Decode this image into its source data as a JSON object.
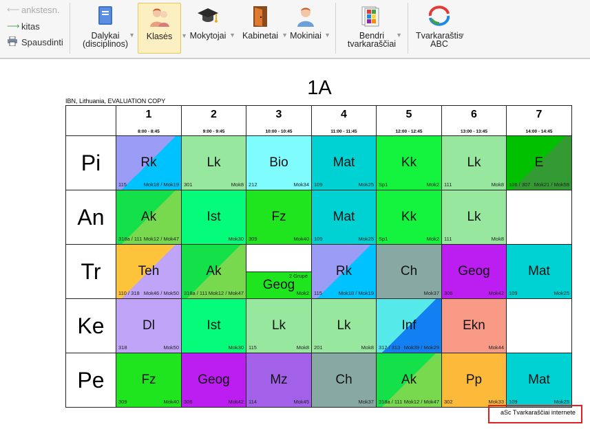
{
  "toolbar": {
    "history": [
      {
        "label": "ankstesn.",
        "icon": "arrow-left-icon",
        "enabled": false
      },
      {
        "label": "kitas",
        "icon": "arrow-right-icon",
        "enabled": true
      },
      {
        "label": "Spausdinti",
        "icon": "printer-icon",
        "enabled": true
      }
    ],
    "buttons": [
      {
        "key": "dalykai",
        "l1": "Dalykai",
        "l2": "(disciplinos)",
        "icon": "book-icon"
      },
      {
        "key": "klases",
        "l1": "Klasės",
        "l2": "",
        "icon": "class-icon"
      },
      {
        "key": "mokytojai",
        "l1": "Mokytojai",
        "l2": "",
        "icon": "graduation-cap-icon"
      },
      {
        "key": "kabinetai",
        "l1": "Kabinetai",
        "l2": "",
        "icon": "door-icon"
      },
      {
        "key": "mokiniai",
        "l1": "Mokiniai",
        "l2": "",
        "icon": "student-icon"
      },
      {
        "key": "bendri",
        "l1": "Bendri",
        "l2": "tvarkaraščiai",
        "icon": "timetables-icon"
      },
      {
        "key": "abc",
        "l1": "Tvarkaraštis",
        "l2": "ABC",
        "icon": "abc-logo-icon"
      }
    ]
  },
  "timetable": {
    "title": "1A",
    "eval_note": "IBN, Lithuania, EVALUATION COPY",
    "periods": [
      {
        "num": "1",
        "time": "8:00 - 8:45"
      },
      {
        "num": "2",
        "time": "9:00 - 9:45"
      },
      {
        "num": "3",
        "time": "10:00 - 10:45"
      },
      {
        "num": "4",
        "time": "11:00 - 11:45"
      },
      {
        "num": "5",
        "time": "12:00 - 12:45"
      },
      {
        "num": "6",
        "time": "13:00 - 13:45"
      },
      {
        "num": "7",
        "time": "14:00 - 14:45"
      }
    ],
    "days": [
      {
        "name": "Pi",
        "lessons": [
          {
            "subject": "Rk",
            "room": "115",
            "teacher": "Mok18 / Mok19",
            "colors": [
              "#9a9cf6",
              "#00c2ff"
            ]
          },
          {
            "subject": "Lk",
            "room": "301",
            "teacher": "Mok8",
            "colors": [
              "#98e79f"
            ]
          },
          {
            "subject": "Bio",
            "room": "212",
            "teacher": "Mok34",
            "colors": [
              "#7ffcfd"
            ]
          },
          {
            "subject": "Mat",
            "room": "109",
            "teacher": "Mok25",
            "colors": [
              "#00d2d3"
            ]
          },
          {
            "subject": "Kk",
            "room": "Sp1",
            "teacher": "Mok2",
            "colors": [
              "#14f43f"
            ]
          },
          {
            "subject": "Lk",
            "room": "111",
            "teacher": "Mok8",
            "colors": [
              "#98e79f"
            ]
          },
          {
            "subject": "E",
            "room": "106 / 307",
            "teacher": "Mok21 / Mok58",
            "colors": [
              "#00c000",
              "#339a34"
            ]
          }
        ]
      },
      {
        "name": "An",
        "lessons": [
          {
            "subject": "Ak",
            "room": "318a / 111",
            "teacher": "Mok12 / Mok47",
            "colors": [
              "#14e04a",
              "#78d84e"
            ]
          },
          {
            "subject": "Ist",
            "room": "",
            "teacher": "Mok30",
            "colors": [
              "#05fc7b"
            ]
          },
          {
            "subject": "Fz",
            "room": "309",
            "teacher": "Mok40",
            "colors": [
              "#1ee51e"
            ]
          },
          {
            "subject": "Mat",
            "room": "109",
            "teacher": "Mok25",
            "colors": [
              "#00d2d3"
            ]
          },
          {
            "subject": "Kk",
            "room": "Sp1",
            "teacher": "Mok2",
            "colors": [
              "#14f43f"
            ]
          },
          {
            "subject": "Lk",
            "room": "111",
            "teacher": "Mok8",
            "colors": [
              "#98e79f"
            ]
          },
          null
        ]
      },
      {
        "name": "Tr",
        "lessons": [
          {
            "subject": "Teh",
            "room": "110 / 318",
            "teacher": "Mok46 / Mok50",
            "colors": [
              "#fcc33b",
              "#c0a4f8"
            ]
          },
          {
            "subject": "Ak",
            "room": "318a / 111",
            "teacher": "Mok12 / Mok47",
            "colors": [
              "#14e04a",
              "#78d84e"
            ]
          },
          {
            "subject": "Geog",
            "room": "",
            "teacher": "Mok2",
            "group": "2 Grupė",
            "split": true,
            "colors": [
              "#1ee51e"
            ]
          },
          {
            "subject": "Rk",
            "room": "115",
            "teacher": "Mok18 / Mok19",
            "colors": [
              "#9a9cf6",
              "#00c2ff"
            ]
          },
          {
            "subject": "Ch",
            "room": "",
            "teacher": "Mok37",
            "colors": [
              "#88a8a4"
            ]
          },
          {
            "subject": "Geog",
            "room": "306",
            "teacher": "Mok42",
            "colors": [
              "#bc1df0"
            ]
          },
          {
            "subject": "Mat",
            "room": "109",
            "teacher": "Mok25",
            "colors": [
              "#00d2d3"
            ]
          }
        ]
      },
      {
        "name": "Ke",
        "lessons": [
          {
            "subject": "Dl",
            "room": "318",
            "teacher": "Mok50",
            "colors": [
              "#c0a4f8"
            ]
          },
          {
            "subject": "Ist",
            "room": "",
            "teacher": "Mok30",
            "colors": [
              "#05fc7b"
            ]
          },
          {
            "subject": "Lk",
            "room": "115",
            "teacher": "Mok8",
            "colors": [
              "#98e79f"
            ]
          },
          {
            "subject": "Lk",
            "room": "201",
            "teacher": "Mok8",
            "colors": [
              "#98e79f"
            ]
          },
          {
            "subject": "Inf",
            "room": "312 / 313",
            "teacher": "Mok39 / Mok29",
            "colors": [
              "#56e9e9",
              "#1280f3"
            ]
          },
          {
            "subject": "Ekn",
            "room": "",
            "teacher": "Mok44",
            "colors": [
              "#f99a86"
            ]
          },
          null
        ]
      },
      {
        "name": "Pe",
        "lessons": [
          {
            "subject": "Fz",
            "room": "309",
            "teacher": "Mok40",
            "colors": [
              "#1ee51e"
            ]
          },
          {
            "subject": "Geog",
            "room": "306",
            "teacher": "Mok42",
            "colors": [
              "#bc1df0"
            ]
          },
          {
            "subject": "Mz",
            "room": "114",
            "teacher": "Mok45",
            "colors": [
              "#a261e8"
            ]
          },
          {
            "subject": "Ch",
            "room": "",
            "teacher": "Mok37",
            "colors": [
              "#88a8a4"
            ]
          },
          {
            "subject": "Ak",
            "room": "318a / 111",
            "teacher": "Mok12 / Mok47",
            "colors": [
              "#14e04a",
              "#78d84e"
            ]
          },
          {
            "subject": "Pp",
            "room": "302",
            "teacher": "Mok33",
            "colors": [
              "#fdba3a"
            ]
          },
          {
            "subject": "Mat",
            "room": "109",
            "teacher": "Mok25",
            "colors": [
              "#00d2d3"
            ]
          }
        ]
      }
    ]
  },
  "footer": {
    "link_text": "aSc Tvarkaraščiai internete"
  }
}
